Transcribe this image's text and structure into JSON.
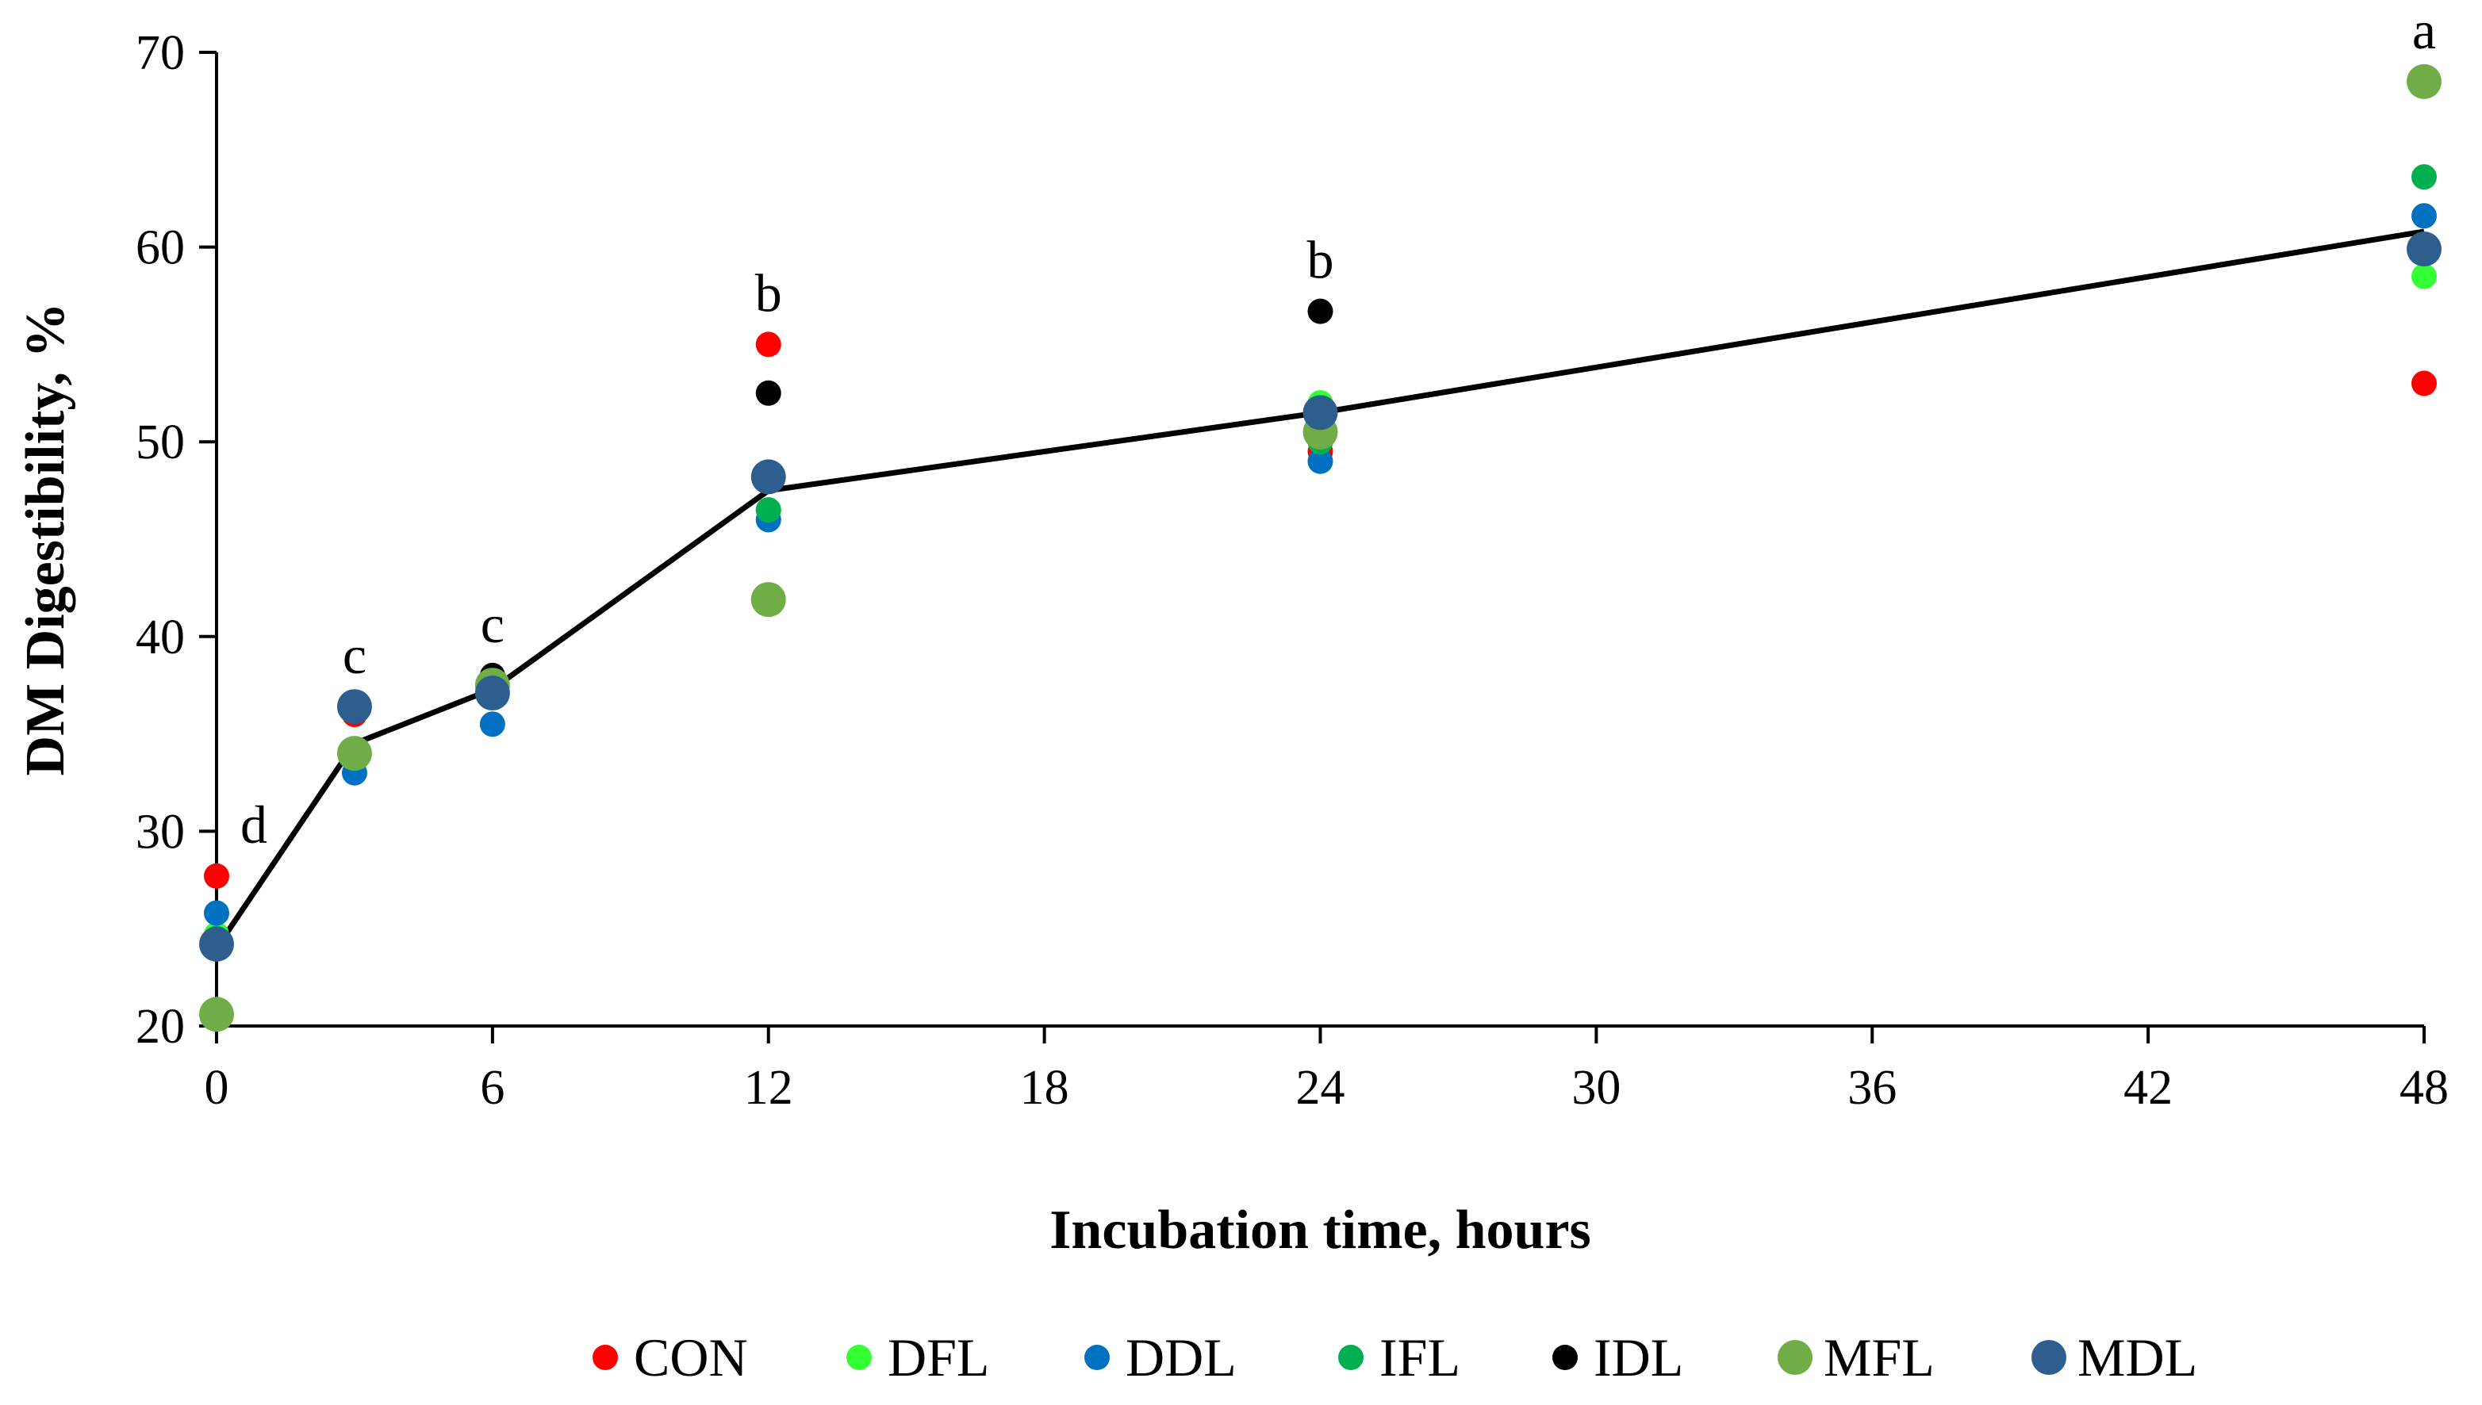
{
  "chart_data": {
    "type": "scatter",
    "title": "",
    "xlabel": "Incubation time, hours",
    "ylabel": "DM Digestibility, %",
    "xlim": [
      0,
      48
    ],
    "ylim": [
      20,
      70
    ],
    "xticks": [
      0,
      6,
      12,
      18,
      24,
      30,
      36,
      42,
      48
    ],
    "yticks": [
      20,
      30,
      40,
      50,
      60,
      70
    ],
    "x": [
      0,
      3,
      6,
      12,
      24,
      48
    ],
    "series": [
      {
        "name": "CON",
        "color": "#ff0000",
        "size": "small",
        "values": [
          27.7,
          36.0,
          37.5,
          55.0,
          49.5,
          53.0
        ]
      },
      {
        "name": "DFL",
        "color": "#33ff33",
        "size": "small",
        "values": [
          24.7,
          34.0,
          37.0,
          46.5,
          52.0,
          58.5
        ]
      },
      {
        "name": "DDL",
        "color": "#0070c0",
        "size": "small",
        "values": [
          25.8,
          33.0,
          35.5,
          46.0,
          49.0,
          61.6
        ]
      },
      {
        "name": "IFL",
        "color": "#00b050",
        "size": "small",
        "values": [
          24.5,
          34.0,
          37.5,
          46.5,
          50.0,
          63.6
        ]
      },
      {
        "name": "IDL",
        "color": "#000000",
        "size": "small",
        "values": [
          24.2,
          34.0,
          38.0,
          52.5,
          56.7,
          60.0
        ]
      },
      {
        "name": "MFL",
        "color": "#70ad47",
        "size": "large",
        "values": [
          20.6,
          34.0,
          37.5,
          41.9,
          50.5,
          68.5
        ]
      },
      {
        "name": "MDL",
        "color": "#2e5e8e",
        "size": "large",
        "values": [
          24.2,
          36.4,
          37.1,
          48.2,
          51.5,
          59.9
        ]
      }
    ],
    "mean_line": {
      "color": "#000000",
      "x": [
        0,
        3,
        6,
        12,
        24,
        48
      ],
      "values": [
        24.0,
        34.5,
        37.3,
        47.5,
        51.5,
        60.8
      ]
    },
    "annotations": [
      {
        "x": 0,
        "y": 27.7,
        "text": "d"
      },
      {
        "x": 3,
        "y": 36.4,
        "text": "c"
      },
      {
        "x": 6,
        "y": 38.0,
        "text": "c"
      },
      {
        "x": 12,
        "y": 55.0,
        "text": "b"
      },
      {
        "x": 24,
        "y": 56.7,
        "text": "b"
      },
      {
        "x": 48,
        "y": 68.5,
        "text": "a"
      }
    ],
    "legend": {
      "position": "bottom"
    }
  }
}
